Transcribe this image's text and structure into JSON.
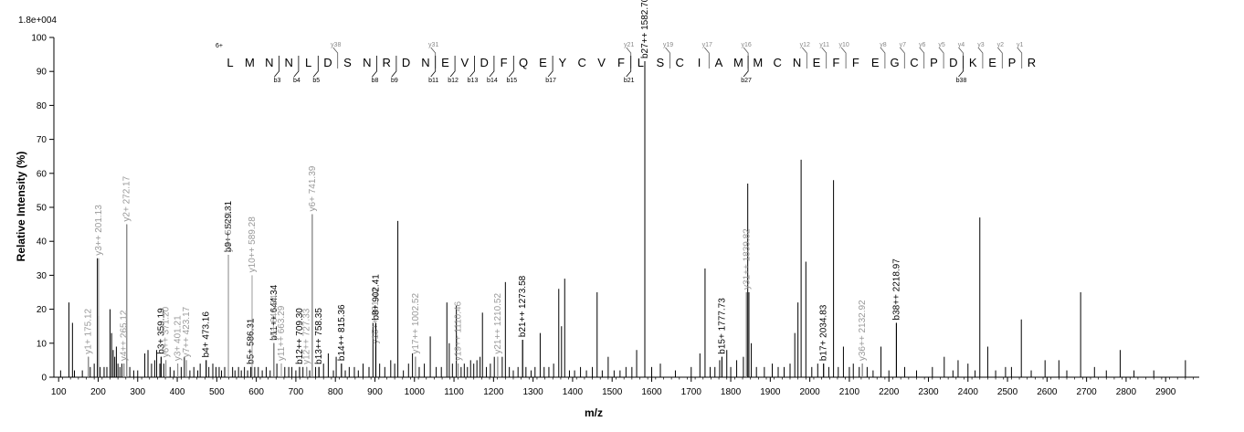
{
  "chart_data": {
    "type": "bar",
    "scale_label": "1.8e+004",
    "xlabel": "m/z",
    "ylabel": "Relative   Intensity (%)",
    "xlim": [
      88,
      2985
    ],
    "ylim": [
      0,
      100
    ],
    "x_ticks": [
      100,
      200,
      300,
      400,
      500,
      600,
      700,
      800,
      900,
      1000,
      1100,
      1200,
      1300,
      1400,
      1500,
      1600,
      1700,
      1800,
      1900,
      2000,
      2100,
      2200,
      2300,
      2400,
      2500,
      2600,
      2700,
      2800,
      2900
    ],
    "y_ticks": [
      0,
      10,
      20,
      30,
      40,
      50,
      60,
      70,
      80,
      90,
      100
    ],
    "charge_label": "6+",
    "sequence": [
      "L",
      "M",
      "N",
      "N",
      "L",
      "D",
      "S",
      "N",
      "R",
      "D",
      "N",
      "E",
      "V",
      "D",
      "F",
      "Q",
      "E",
      "Y",
      "C",
      "V",
      "F",
      "L",
      "S",
      "C",
      "I",
      "A",
      "M",
      "M",
      "C",
      "N",
      "E",
      "F",
      "F",
      "E",
      "G",
      "C",
      "P",
      "D",
      "K",
      "E",
      "P",
      "R"
    ],
    "y_ion_marks": [
      {
        "after": 5,
        "label": "y38"
      },
      {
        "after": 10,
        "label": "y31"
      },
      {
        "after": 20,
        "label": "y21"
      },
      {
        "after": 22,
        "label": "y19"
      },
      {
        "after": 24,
        "label": "y17"
      },
      {
        "after": 26,
        "label": "y16"
      },
      {
        "after": 29,
        "label": "y12"
      },
      {
        "after": 30,
        "label": "y11"
      },
      {
        "after": 31,
        "label": "y10"
      },
      {
        "after": 33,
        "label": "y8"
      },
      {
        "after": 34,
        "label": "y7"
      },
      {
        "after": 35,
        "label": "y6"
      },
      {
        "after": 36,
        "label": "y5"
      },
      {
        "after": 37,
        "label": "y4"
      },
      {
        "after": 38,
        "label": "y3"
      },
      {
        "after": 39,
        "label": "y2"
      },
      {
        "after": 40,
        "label": "y1"
      }
    ],
    "b_ion_marks": [
      {
        "after": 2,
        "label": "b3"
      },
      {
        "after": 3,
        "label": "b4"
      },
      {
        "after": 4,
        "label": "b5"
      },
      {
        "after": 7,
        "label": "b8"
      },
      {
        "after": 8,
        "label": "b9"
      },
      {
        "after": 10,
        "label": "b11"
      },
      {
        "after": 11,
        "label": "b12"
      },
      {
        "after": 12,
        "label": "b13"
      },
      {
        "after": 13,
        "label": "b14"
      },
      {
        "after": 14,
        "label": "b15"
      },
      {
        "after": 16,
        "label": "b17"
      },
      {
        "after": 20,
        "label": "b21"
      },
      {
        "after": 26,
        "label": "b27"
      },
      {
        "after": 37,
        "label": "b38"
      }
    ],
    "labeled_peaks": [
      {
        "x": 175.12,
        "y": 6,
        "label": "y1+ 175.12",
        "kind": "y"
      },
      {
        "x": 201.13,
        "y": 35,
        "label": "y3++ 201.13",
        "kind": "y"
      },
      {
        "x": 265.12,
        "y": 4,
        "label": "y4++ 265.12",
        "kind": "y"
      },
      {
        "x": 272.17,
        "y": 45,
        "label": "y2+ 272.17",
        "kind": "y"
      },
      {
        "x": 359.19,
        "y": 6,
        "label": "b3+ 359.19",
        "kind": "b"
      },
      {
        "x": 371.2,
        "y": 5,
        "label": "y6++ 371.20",
        "kind": "y"
      },
      {
        "x": 401.21,
        "y": 4,
        "label": "y3+ 401.21",
        "kind": "y"
      },
      {
        "x": 423.17,
        "y": 5,
        "label": "y7++ 423.17",
        "kind": "y"
      },
      {
        "x": 473.16,
        "y": 5,
        "label": "b4+ 473.16",
        "kind": "b"
      },
      {
        "x": 529.31,
        "y": 36,
        "label": "b9++ 529.31",
        "kind": "b"
      },
      {
        "x": 529.31,
        "y": 36,
        "label": "y4+ 529.31",
        "kind": "y"
      },
      {
        "x": 586.31,
        "y": 3,
        "label": "b5+ 586.31",
        "kind": "b"
      },
      {
        "x": 589.28,
        "y": 30,
        "label": "y10++ 589.28",
        "kind": "y"
      },
      {
        "x": 644.34,
        "y": 10,
        "label": "b11++ 644.34",
        "kind": "b"
      },
      {
        "x": 644.34,
        "y": 10,
        "label": "y5+ 644.34",
        "kind": "y"
      },
      {
        "x": 663.29,
        "y": 4,
        "label": "y11++ 663.29",
        "kind": "y"
      },
      {
        "x": 709.3,
        "y": 3,
        "label": "b12++ 709.30",
        "kind": "b"
      },
      {
        "x": 727.33,
        "y": 3,
        "label": "y12++ 727.33",
        "kind": "y"
      },
      {
        "x": 741.39,
        "y": 48,
        "label": "y6+ 741.39",
        "kind": "y"
      },
      {
        "x": 758.35,
        "y": 3,
        "label": "b13++ 758.35",
        "kind": "b"
      },
      {
        "x": 815.36,
        "y": 4,
        "label": "b14++ 815.36",
        "kind": "b"
      },
      {
        "x": 901.42,
        "y": 9,
        "label": "y15++ 901.42",
        "kind": "y"
      },
      {
        "x": 902.41,
        "y": 16,
        "label": "b8+ 902.41",
        "kind": "b"
      },
      {
        "x": 1002.52,
        "y": 6,
        "label": "y17++ 1002.52",
        "kind": "y"
      },
      {
        "x": 1110.46,
        "y": 4,
        "label": "y19++ 1110.46",
        "kind": "y"
      },
      {
        "x": 1210.52,
        "y": 6,
        "label": "y21++ 1210.52",
        "kind": "y"
      },
      {
        "x": 1273.58,
        "y": 11,
        "label": "b21++ 1273.58",
        "kind": "b"
      },
      {
        "x": 1582.7,
        "y": 93,
        "label": "b27++ 1582.70",
        "kind": "b"
      },
      {
        "x": 1777.73,
        "y": 6,
        "label": "b15+ 1777.73",
        "kind": "b"
      },
      {
        "x": 1839.82,
        "y": 25,
        "label": "y31++ 1839.82",
        "kind": "y"
      },
      {
        "x": 2034.83,
        "y": 4,
        "label": "b17+ 2034.83",
        "kind": "b"
      },
      {
        "x": 2132.92,
        "y": 4,
        "label": "y36++ 2132.92",
        "kind": "y"
      },
      {
        "x": 2218.97,
        "y": 16,
        "label": "b38++ 2218.97",
        "kind": "b"
      }
    ],
    "peaks": [
      [
        105,
        2
      ],
      [
        126,
        22
      ],
      [
        135,
        16
      ],
      [
        140,
        2
      ],
      [
        160,
        2
      ],
      [
        175.12,
        6
      ],
      [
        180,
        3
      ],
      [
        190,
        4
      ],
      [
        198,
        35
      ],
      [
        201.13,
        18
      ],
      [
        205,
        3
      ],
      [
        215,
        3
      ],
      [
        222,
        3
      ],
      [
        230,
        20
      ],
      [
        234,
        13
      ],
      [
        238,
        8
      ],
      [
        242,
        6
      ],
      [
        246,
        9
      ],
      [
        250,
        4
      ],
      [
        255,
        3
      ],
      [
        260,
        4
      ],
      [
        265.12,
        4
      ],
      [
        272.17,
        45
      ],
      [
        280,
        3
      ],
      [
        290,
        2
      ],
      [
        300,
        2
      ],
      [
        318,
        7
      ],
      [
        326,
        8
      ],
      [
        335,
        4
      ],
      [
        343,
        5
      ],
      [
        348,
        8
      ],
      [
        356,
        4
      ],
      [
        359.19,
        6
      ],
      [
        366,
        4
      ],
      [
        371.2,
        5
      ],
      [
        382,
        3
      ],
      [
        392,
        2
      ],
      [
        401.21,
        4
      ],
      [
        410,
        3
      ],
      [
        418,
        6
      ],
      [
        423.17,
        5
      ],
      [
        432,
        2
      ],
      [
        442,
        3
      ],
      [
        452,
        2
      ],
      [
        458,
        4
      ],
      [
        473.16,
        5
      ],
      [
        480,
        3
      ],
      [
        490,
        4
      ],
      [
        498,
        3
      ],
      [
        506,
        3
      ],
      [
        512,
        2
      ],
      [
        520,
        3
      ],
      [
        529.31,
        36
      ],
      [
        540,
        3
      ],
      [
        546,
        2
      ],
      [
        555,
        3
      ],
      [
        562,
        2
      ],
      [
        570,
        3
      ],
      [
        578,
        2
      ],
      [
        586.31,
        3
      ],
      [
        589.28,
        3
      ],
      [
        596,
        3
      ],
      [
        605,
        3
      ],
      [
        615,
        2
      ],
      [
        625,
        3
      ],
      [
        635,
        2
      ],
      [
        644.34,
        10
      ],
      [
        652,
        4
      ],
      [
        663.29,
        4
      ],
      [
        672,
        3
      ],
      [
        682,
        3
      ],
      [
        690,
        3
      ],
      [
        700,
        2
      ],
      [
        709.3,
        3
      ],
      [
        718,
        3
      ],
      [
        727.33,
        3
      ],
      [
        735,
        2
      ],
      [
        741.39,
        48
      ],
      [
        750,
        3
      ],
      [
        758.35,
        3
      ],
      [
        770,
        4
      ],
      [
        782,
        7
      ],
      [
        795,
        2
      ],
      [
        802,
        6
      ],
      [
        815.36,
        4
      ],
      [
        825,
        2
      ],
      [
        835,
        3
      ],
      [
        848,
        3
      ],
      [
        858,
        2
      ],
      [
        870,
        4
      ],
      [
        885,
        3
      ],
      [
        895,
        16
      ],
      [
        902.41,
        16
      ],
      [
        912,
        4
      ],
      [
        925,
        3
      ],
      [
        940,
        5
      ],
      [
        950,
        4
      ],
      [
        958,
        46
      ],
      [
        972,
        2
      ],
      [
        985,
        4
      ],
      [
        995,
        7
      ],
      [
        1002.52,
        6
      ],
      [
        1012,
        3
      ],
      [
        1025,
        4
      ],
      [
        1040,
        12
      ],
      [
        1055,
        3
      ],
      [
        1068,
        3
      ],
      [
        1082,
        22
      ],
      [
        1088,
        10
      ],
      [
        1096,
        4
      ],
      [
        1106,
        21
      ],
      [
        1110.46,
        4
      ],
      [
        1118,
        3
      ],
      [
        1126,
        4
      ],
      [
        1134,
        3
      ],
      [
        1142,
        5
      ],
      [
        1150,
        4
      ],
      [
        1158,
        5
      ],
      [
        1166,
        6
      ],
      [
        1172,
        19
      ],
      [
        1182,
        3
      ],
      [
        1192,
        4
      ],
      [
        1202,
        6
      ],
      [
        1210.52,
        6
      ],
      [
        1222,
        6
      ],
      [
        1230,
        28
      ],
      [
        1240,
        3
      ],
      [
        1250,
        2
      ],
      [
        1262,
        3
      ],
      [
        1273.58,
        11
      ],
      [
        1282,
        3
      ],
      [
        1295,
        2
      ],
      [
        1305,
        3
      ],
      [
        1318,
        13
      ],
      [
        1328,
        3
      ],
      [
        1340,
        3
      ],
      [
        1352,
        4
      ],
      [
        1365,
        26
      ],
      [
        1372,
        15
      ],
      [
        1380,
        29
      ],
      [
        1392,
        2
      ],
      [
        1405,
        2
      ],
      [
        1420,
        3
      ],
      [
        1435,
        2
      ],
      [
        1450,
        3
      ],
      [
        1462,
        25
      ],
      [
        1475,
        2
      ],
      [
        1490,
        6
      ],
      [
        1505,
        2
      ],
      [
        1520,
        2
      ],
      [
        1535,
        3
      ],
      [
        1550,
        3
      ],
      [
        1562,
        8
      ],
      [
        1582.7,
        93
      ],
      [
        1600,
        3
      ],
      [
        1622,
        4
      ],
      [
        1660,
        2
      ],
      [
        1700,
        3
      ],
      [
        1722,
        7
      ],
      [
        1735,
        32
      ],
      [
        1748,
        3
      ],
      [
        1760,
        3
      ],
      [
        1772,
        5
      ],
      [
        1777.73,
        6
      ],
      [
        1790,
        8
      ],
      [
        1800,
        3
      ],
      [
        1815,
        5
      ],
      [
        1832,
        6
      ],
      [
        1843,
        57
      ],
      [
        1846,
        25
      ],
      [
        1839.82,
        25
      ],
      [
        1852,
        10
      ],
      [
        1865,
        3
      ],
      [
        1885,
        3
      ],
      [
        1905,
        4
      ],
      [
        1920,
        3
      ],
      [
        1935,
        3
      ],
      [
        1950,
        4
      ],
      [
        1962,
        13
      ],
      [
        1970,
        22
      ],
      [
        1978,
        64
      ],
      [
        1990,
        34
      ],
      [
        2005,
        3
      ],
      [
        2020,
        4
      ],
      [
        2034.83,
        4
      ],
      [
        2048,
        3
      ],
      [
        2060,
        58
      ],
      [
        2072,
        3
      ],
      [
        2085,
        9
      ],
      [
        2100,
        3
      ],
      [
        2110,
        4
      ],
      [
        2125,
        3
      ],
      [
        2132.92,
        4
      ],
      [
        2145,
        3
      ],
      [
        2160,
        2
      ],
      [
        2180,
        9
      ],
      [
        2200,
        2
      ],
      [
        2218.97,
        16
      ],
      [
        2240,
        3
      ],
      [
        2270,
        2
      ],
      [
        2310,
        3
      ],
      [
        2340,
        6
      ],
      [
        2362,
        2
      ],
      [
        2375,
        5
      ],
      [
        2400,
        4
      ],
      [
        2418,
        2
      ],
      [
        2430,
        47
      ],
      [
        2450,
        9
      ],
      [
        2470,
        2
      ],
      [
        2495,
        3
      ],
      [
        2510,
        3
      ],
      [
        2535,
        17
      ],
      [
        2560,
        2
      ],
      [
        2595,
        5
      ],
      [
        2630,
        5
      ],
      [
        2650,
        2
      ],
      [
        2685,
        25
      ],
      [
        2720,
        3
      ],
      [
        2750,
        2
      ],
      [
        2785,
        8
      ],
      [
        2820,
        2
      ],
      [
        2870,
        2
      ],
      [
        2950,
        5
      ]
    ]
  }
}
